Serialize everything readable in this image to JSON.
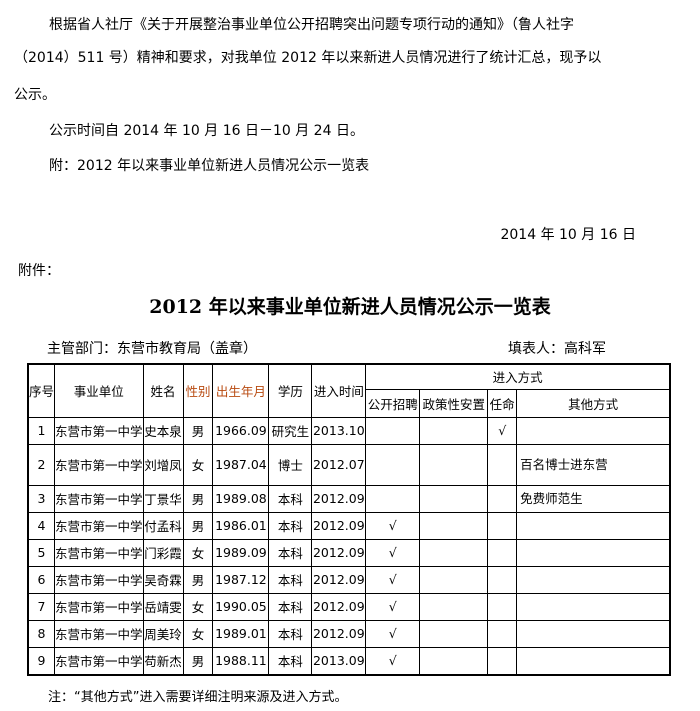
{
  "notice": {
    "line1": "根据省人社厅《关于开展整治事业单位公开招聘突出问题专项行动的通知》（鲁人社字",
    "line2": "（2014）511 号）精神和要求，对我单位 2012 年以来新进人员情况进行了统计汇总，现予以",
    "line3": "公示。",
    "period": "公示时间自 2014 年 10 月 16 日－10 月 24 日。",
    "attachment_note": "附：2012 年以来事业单位新进人员情况公示一览表",
    "date": "2014 年 10 月 16 日",
    "attachment_label": "附件："
  },
  "table_title": "2012 年以来事业单位新进人员情况公示一览表",
  "dept": "主管部门：东营市教育局（盖章）",
  "filler": "填表人：高科军",
  "headers": {
    "no": "序号",
    "unit": "事业单位",
    "name": "姓名",
    "gender": "性别",
    "birth": "出生年月",
    "edu": "学历",
    "entry_time": "进入时间",
    "entry_mode": "进入方式",
    "open": "公开招聘",
    "policy": "政策性安置",
    "appoint": "任命",
    "other": "其他方式"
  },
  "header_accent_color": "#b84a10",
  "rows": [
    {
      "no": "1",
      "unit": "东营市第一中学",
      "name": "史本泉",
      "gender": "男",
      "birth": "1966.09",
      "edu": "研究生",
      "time": "2013.10",
      "open": "",
      "policy": "",
      "appoint": "√",
      "other": ""
    },
    {
      "no": "2",
      "unit": "东营市第一中学",
      "name": "刘增凤",
      "gender": "女",
      "birth": "1987.04",
      "edu": "博士",
      "time": "2012.07",
      "open": "",
      "policy": "",
      "appoint": "",
      "other": "百名博士进东营"
    },
    {
      "no": "3",
      "unit": "东营市第一中学",
      "name": "丁景华",
      "gender": "男",
      "birth": "1989.08",
      "edu": "本科",
      "time": "2012.09",
      "open": "",
      "policy": "",
      "appoint": "",
      "other": "免费师范生"
    },
    {
      "no": "4",
      "unit": "东营市第一中学",
      "name": "付孟科",
      "gender": "男",
      "birth": "1986.01",
      "edu": "本科",
      "time": "2012.09",
      "open": "√",
      "policy": "",
      "appoint": "",
      "other": ""
    },
    {
      "no": "5",
      "unit": "东营市第一中学",
      "name": "门彩霞",
      "gender": "女",
      "birth": "1989.09",
      "edu": "本科",
      "time": "2012.09",
      "open": "√",
      "policy": "",
      "appoint": "",
      "other": ""
    },
    {
      "no": "6",
      "unit": "东营市第一中学",
      "name": "吴奇霖",
      "gender": "男",
      "birth": "1987.12",
      "edu": "本科",
      "time": "2012.09",
      "open": "√",
      "policy": "",
      "appoint": "",
      "other": ""
    },
    {
      "no": "7",
      "unit": "东营市第一中学",
      "name": "岳靖雯",
      "gender": "女",
      "birth": "1990.05",
      "edu": "本科",
      "time": "2012.09",
      "open": "√",
      "policy": "",
      "appoint": "",
      "other": ""
    },
    {
      "no": "8",
      "unit": "东营市第一中学",
      "name": "周美玲",
      "gender": "女",
      "birth": "1989.01",
      "edu": "本科",
      "time": "2012.09",
      "open": "√",
      "policy": "",
      "appoint": "",
      "other": ""
    },
    {
      "no": "9",
      "unit": "东营市第一中学",
      "name": "苟新杰",
      "gender": "男",
      "birth": "1988.11",
      "edu": "本科",
      "time": "2013.09",
      "open": "√",
      "policy": "",
      "appoint": "",
      "other": ""
    }
  ],
  "footnote": "注：“其他方式”进入需要详细注明来源及进入方式。"
}
